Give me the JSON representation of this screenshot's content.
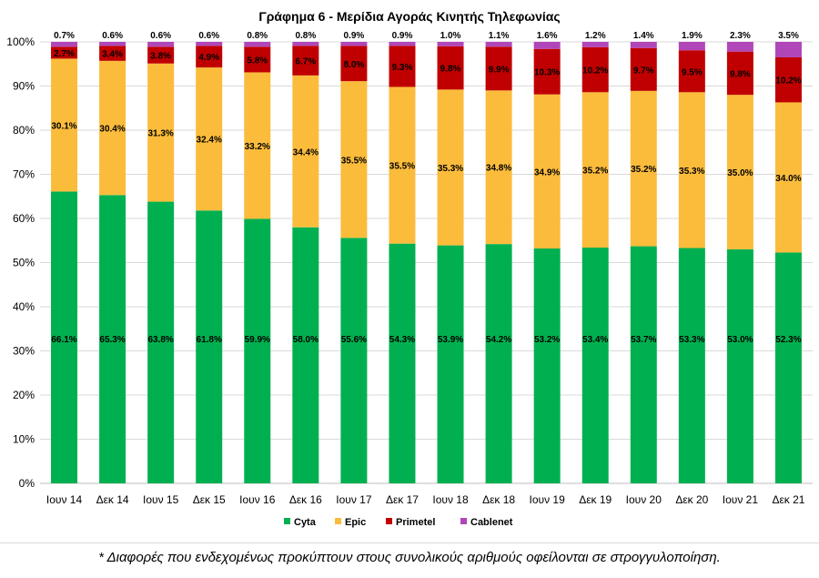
{
  "chart_data": {
    "type": "bar",
    "stacked": true,
    "title": "Γράφημα 6 - Μερίδια Αγοράς Κινητής Τηλεφωνίας",
    "xlabel": "",
    "ylabel": "",
    "ylim": [
      0,
      100
    ],
    "yticks": [
      "0%",
      "10%",
      "20%",
      "30%",
      "40%",
      "50%",
      "60%",
      "70%",
      "80%",
      "90%",
      "100%"
    ],
    "legend_position": "bottom",
    "categories": [
      "Ιουν 14",
      "Δεκ 14",
      "Ιουν 15",
      "Δεκ 15",
      "Ιουν 16",
      "Δεκ 16",
      "Ιουν 17",
      "Δεκ 17",
      "Ιουν 18",
      "Δεκ 18",
      "Ιουν 19",
      "Δεκ 19",
      "Ιουν 20",
      "Δεκ 20",
      "Ιουν 21",
      "Δεκ 21"
    ],
    "series": [
      {
        "name": "Cyta",
        "color": "#00b050",
        "values": [
          66.1,
          65.3,
          63.8,
          61.8,
          59.9,
          58.0,
          55.6,
          54.3,
          53.9,
          54.2,
          53.2,
          53.4,
          53.7,
          53.3,
          53.0,
          52.3
        ],
        "labels": [
          "66.1%",
          "65.3%",
          "63.8%",
          "61.8%",
          "59.9%",
          "58.0%",
          "55.6%",
          "54.3%",
          "53.9%",
          "54.2%",
          "53.2%",
          "53.4%",
          "53.7%",
          "53.3%",
          "53.0%",
          "52.3%"
        ]
      },
      {
        "name": "Epic",
        "color": "#fbbc3c",
        "values": [
          30.1,
          30.4,
          31.3,
          32.4,
          33.2,
          34.4,
          35.5,
          35.5,
          35.3,
          34.8,
          34.9,
          35.2,
          35.2,
          35.3,
          35.0,
          34.0
        ],
        "labels": [
          "30.1%",
          "30.4%",
          "31.3%",
          "32.4%",
          "33.2%",
          "34.4%",
          "35.5%",
          "35.5%",
          "35.3%",
          "34.8%",
          "34.9%",
          "35.2%",
          "35.2%",
          "35.3%",
          "35.0%",
          "34.0%"
        ]
      },
      {
        "name": "Primetel",
        "color": "#c00000",
        "values": [
          2.7,
          3.4,
          3.8,
          4.9,
          5.8,
          6.7,
          8.0,
          9.3,
          9.8,
          9.9,
          10.3,
          10.2,
          9.7,
          9.5,
          9.8,
          10.2
        ],
        "labels": [
          "2.7%",
          "3.4%",
          "3.8%",
          "4.9%",
          "5.8%",
          "6.7%",
          "8.0%",
          "9.3%",
          "9.8%",
          "9.9%",
          "10.3%",
          "10.2%",
          "9.7%",
          "9.5%",
          "9.8%",
          "10.2%"
        ]
      },
      {
        "name": "Cablenet",
        "color": "#b146b9",
        "values": [
          0.7,
          0.6,
          0.6,
          0.6,
          0.8,
          0.8,
          0.9,
          0.9,
          1.0,
          1.1,
          1.6,
          1.2,
          1.4,
          1.9,
          2.3,
          3.5
        ],
        "labels": [
          "0.7%",
          "0.6%",
          "0.6%",
          "0.6%",
          "0.8%",
          "0.8%",
          "0.9%",
          "0.9%",
          "1.0%",
          "1.1%",
          "1.6%",
          "1.2%",
          "1.4%",
          "1.9%",
          "2.3%",
          "3.5%"
        ]
      }
    ]
  },
  "footnote": "* Διαφορές που ενδεχομένως προκύπτουν στους συνολικούς αριθμούς οφείλονται σε στρογγυλοποίηση."
}
